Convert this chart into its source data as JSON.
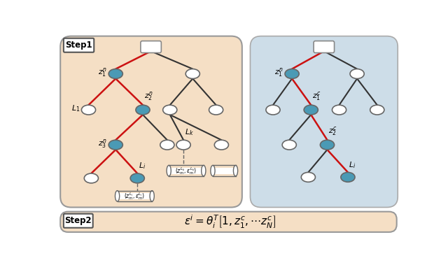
{
  "bg_color": "#ffffff",
  "left_box_color": "#f5dfc5",
  "right_box_color": "#cddde8",
  "step2_box_color": "#f5dfc5",
  "node_filled_color": "#4a9ab5",
  "node_empty_color": "#ffffff",
  "node_edge_color": "#666666",
  "red_line_color": "#cc1111",
  "black_line_color": "#333333",
  "step1_label": "Step1",
  "step2_label": "Step2",
  "formula": "$\\varepsilon^i = \\theta_i^T \\left[ 1, z_1^c, \\cdots z_N^c \\right]$"
}
